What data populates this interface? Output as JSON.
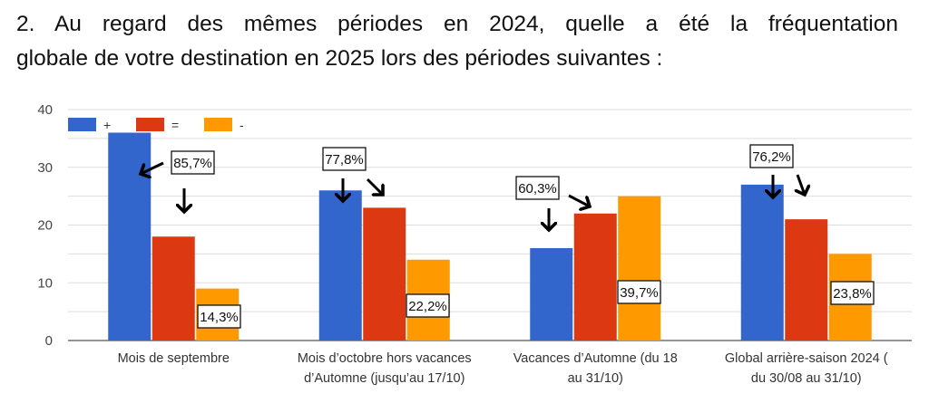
{
  "question": {
    "line1": "2. Au regard des mêmes périodes en 2024, quelle a été la fréquentation",
    "line2": "globale de votre destination en 2025 lors des périodes suivantes :"
  },
  "chart_data": {
    "type": "bar",
    "title": "",
    "xlabel": "",
    "ylabel": "",
    "ylim": [
      0,
      40
    ],
    "yticks": [
      0,
      10,
      20,
      30,
      40
    ],
    "grid": true,
    "legend_position": "top-left",
    "categories": [
      [
        "Mois de septembre"
      ],
      [
        "Mois d’octobre hors vacances",
        "d’Automne (jusqu’au 17/10)"
      ],
      [
        "Vacances d’Automne (du 18",
        "au 31/10)"
      ],
      [
        "Global arrière-saison 2024 (",
        "du 30/08 au 31/10)"
      ]
    ],
    "series": [
      {
        "name": "+",
        "color": "#3366cc",
        "values": [
          36,
          26,
          16,
          27
        ]
      },
      {
        "name": "=",
        "color": "#dc3912",
        "values": [
          18,
          23,
          22,
          21
        ]
      },
      {
        "name": "-",
        "color": "#ff9900",
        "values": [
          9,
          14,
          25,
          15
        ]
      }
    ],
    "annotations": [
      {
        "category": 0,
        "text": "85,7%",
        "refers_to": "+ and ="
      },
      {
        "category": 0,
        "text": "14,3%",
        "refers_to": "-"
      },
      {
        "category": 1,
        "text": "77,8%",
        "refers_to": "+ and ="
      },
      {
        "category": 1,
        "text": "22,2%",
        "refers_to": "-"
      },
      {
        "category": 2,
        "text": "60,3%",
        "refers_to": "+ and ="
      },
      {
        "category": 2,
        "text": "39,7%",
        "refers_to": "-"
      },
      {
        "category": 3,
        "text": "76,2%",
        "refers_to": "+ and ="
      },
      {
        "category": 3,
        "text": "23,8%",
        "refers_to": "-"
      }
    ]
  }
}
